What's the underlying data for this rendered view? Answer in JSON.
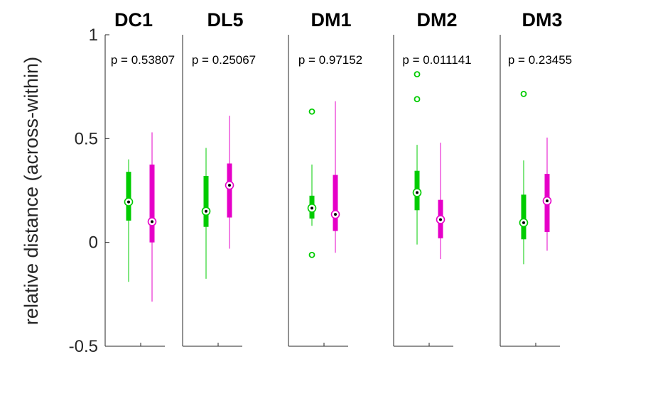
{
  "chart_data": {
    "type": "box",
    "ylabel": "relative distance (across-within)",
    "ylim": [
      -0.5,
      1
    ],
    "yticks": [
      {
        "value": 1,
        "label": "1"
      },
      {
        "value": 0.5,
        "label": "0.5"
      },
      {
        "value": 0,
        "label": "0"
      },
      {
        "value": -0.5,
        "label": "-0.5"
      }
    ],
    "colors": {
      "group1": "#00cc00",
      "group2": "#e600c8"
    },
    "panels": [
      {
        "title": "DC1",
        "p_label": "p = 0.53807",
        "boxes": [
          {
            "median": 0.195,
            "q1": 0.105,
            "q3": 0.34,
            "whisker_low": -0.19,
            "whisker_high": 0.4,
            "outliers": []
          },
          {
            "median": 0.1,
            "q1": 0.0,
            "q3": 0.375,
            "whisker_low": -0.285,
            "whisker_high": 0.53,
            "outliers": []
          }
        ]
      },
      {
        "title": "DL5",
        "p_label": "p = 0.25067",
        "boxes": [
          {
            "median": 0.15,
            "q1": 0.075,
            "q3": 0.32,
            "whisker_low": -0.175,
            "whisker_high": 0.455,
            "outliers": []
          },
          {
            "median": 0.275,
            "q1": 0.12,
            "q3": 0.38,
            "whisker_low": -0.03,
            "whisker_high": 0.61,
            "outliers": []
          }
        ]
      },
      {
        "title": "DM1",
        "p_label": "p = 0.97152",
        "boxes": [
          {
            "median": 0.165,
            "q1": 0.115,
            "q3": 0.225,
            "whisker_low": 0.08,
            "whisker_high": 0.375,
            "outliers": [
              0.63,
              -0.06
            ]
          },
          {
            "median": 0.135,
            "q1": 0.055,
            "q3": 0.325,
            "whisker_low": -0.05,
            "whisker_high": 0.68,
            "outliers": []
          }
        ]
      },
      {
        "title": "DM2",
        "p_label": "p = 0.011141",
        "boxes": [
          {
            "median": 0.24,
            "q1": 0.155,
            "q3": 0.345,
            "whisker_low": -0.01,
            "whisker_high": 0.47,
            "outliers": [
              0.81,
              0.69
            ]
          },
          {
            "median": 0.11,
            "q1": 0.02,
            "q3": 0.205,
            "whisker_low": -0.08,
            "whisker_high": 0.48,
            "outliers": []
          }
        ]
      },
      {
        "title": "DM3",
        "p_label": "p = 0.23455",
        "boxes": [
          {
            "median": 0.095,
            "q1": 0.015,
            "q3": 0.23,
            "whisker_low": -0.105,
            "whisker_high": 0.395,
            "outliers": [
              0.715
            ]
          },
          {
            "median": 0.2,
            "q1": 0.05,
            "q3": 0.33,
            "whisker_low": -0.04,
            "whisker_high": 0.505,
            "outliers": []
          }
        ]
      }
    ]
  }
}
